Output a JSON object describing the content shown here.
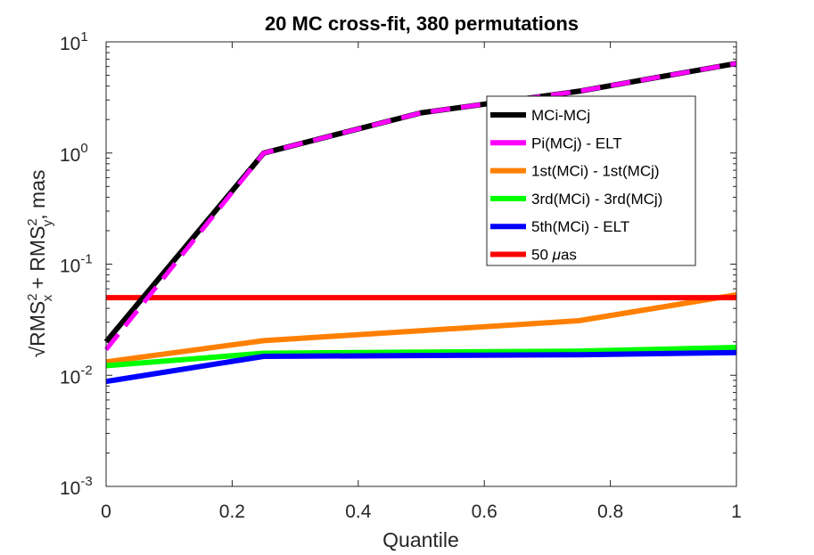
{
  "chart_data": {
    "type": "line",
    "title": "20 MC cross-fit, 380 permutations",
    "xlabel": "Quantile",
    "ylabel": "√RMS_x^2 + RMS_y^2, mas",
    "ylabel_parts": {
      "sqrt": "√",
      "rms1": "RMS",
      "sup1": "2",
      "sub1": "x",
      "plus": " + RMS",
      "sup2": "2",
      "sub2": "y",
      "tail": ", mas"
    },
    "xlim": [
      0,
      1
    ],
    "ylim": [
      0.001,
      10
    ],
    "yscale": "log",
    "xticks": [
      "0",
      "0.2",
      "0.4",
      "0.6",
      "0.8",
      "1"
    ],
    "yticks": [
      {
        "base": "10",
        "exp": "1"
      },
      {
        "base": "10",
        "exp": "0"
      },
      {
        "base": "10",
        "exp": "-1"
      },
      {
        "base": "10",
        "exp": "-2"
      },
      {
        "base": "10",
        "exp": "-3"
      }
    ],
    "legend_position": "top-right",
    "series": [
      {
        "name": "MCi-MCj",
        "color": "#000000",
        "dashed": false,
        "x": [
          0,
          0.25,
          0.5,
          0.75,
          1
        ],
        "y": [
          0.02,
          1.0,
          2.3,
          3.6,
          6.4
        ]
      },
      {
        "name": "Pi(MCj) - ELT",
        "color": "#ff00ff",
        "dashed": true,
        "x": [
          0,
          0.25,
          0.5,
          0.75,
          1
        ],
        "y": [
          0.017,
          1.0,
          2.3,
          3.6,
          6.4
        ]
      },
      {
        "name": "1st(MCi) - 1st(MCj)",
        "color": "#ff8000",
        "dashed": false,
        "x": [
          0,
          0.25,
          0.75,
          1
        ],
        "y": [
          0.0132,
          0.0205,
          0.031,
          0.053
        ]
      },
      {
        "name": "3rd(MCi) - 3rd(MCj)",
        "color": "#00ff00",
        "dashed": false,
        "x": [
          0,
          0.25,
          0.75,
          1
        ],
        "y": [
          0.0122,
          0.0158,
          0.0165,
          0.0178
        ]
      },
      {
        "name": "5th(MCi) - ELT",
        "color": "#0000ff",
        "dashed": false,
        "x": [
          0,
          0.25,
          0.75,
          1
        ],
        "y": [
          0.0088,
          0.0148,
          0.0153,
          0.016
        ]
      },
      {
        "name": "50 μas",
        "legend_prefix": "50 ",
        "legend_mu": "μ",
        "legend_suffix": "as",
        "color": "#ff0000",
        "dashed": false,
        "x": [
          0,
          1
        ],
        "y": [
          0.05,
          0.05
        ]
      }
    ]
  }
}
